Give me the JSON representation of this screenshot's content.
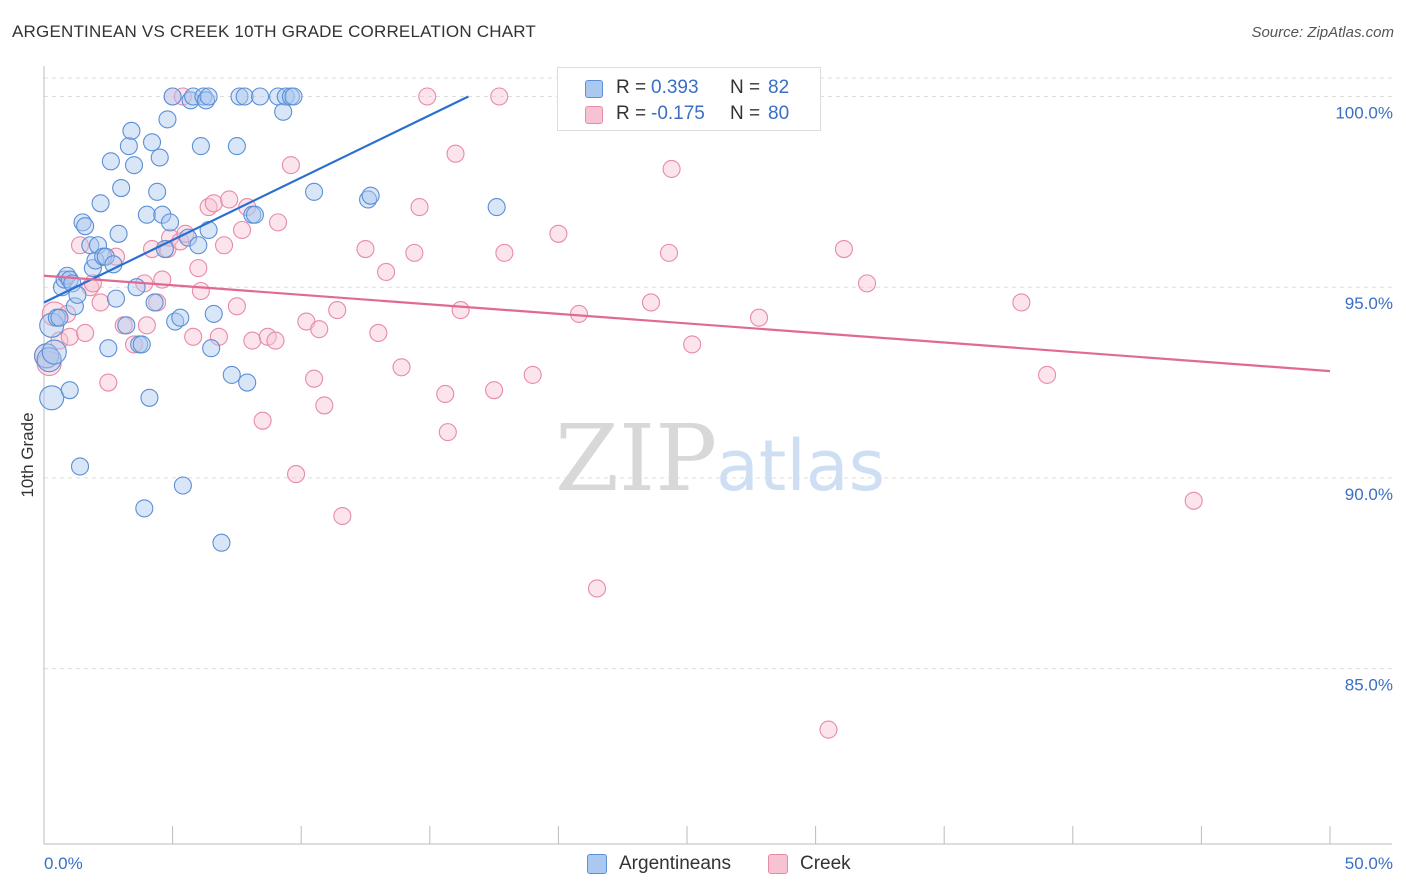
{
  "title": "ARGENTINEAN VS CREEK 10TH GRADE CORRELATION CHART",
  "source": "Source: ZipAtlas.com",
  "watermark": {
    "zip": "ZIP",
    "atlas": "atlas"
  },
  "legend": {
    "series": [
      {
        "r_label": "R =",
        "r_value": "0.393",
        "n_label": "N =",
        "n_value": "82"
      },
      {
        "r_label": "R =",
        "r_value": "-0.175",
        "n_label": "N =",
        "n_value": "80"
      }
    ],
    "bottom": [
      "Argentineans",
      "Creek"
    ]
  },
  "colors": {
    "blue_fill": "#aac8f0",
    "blue_stroke": "#5b8fd6",
    "blue_line": "#2a6fd0",
    "pink_fill": "#f7c3d3",
    "pink_stroke": "#e88aa8",
    "pink_line": "#e06a95",
    "tick_label": "#3a6fc4",
    "grid": "#dddddd"
  },
  "chart_data": {
    "type": "scatter",
    "title": "ARGENTINEAN VS CREEK 10TH GRADE CORRELATION CHART",
    "xlabel": "",
    "ylabel": "10th Grade",
    "xlim": [
      0,
      50
    ],
    "ylim": [
      80.4,
      100.8
    ],
    "x_tick_labels": [
      "0.0%",
      "50.0%"
    ],
    "y_ticks": [
      85,
      90,
      95,
      100
    ],
    "y_tick_labels": [
      "85.0%",
      "90.0%",
      "95.0%",
      "100.0%"
    ],
    "grid": "horizontal dashed",
    "legend_position": "top-center and bottom",
    "series": [
      {
        "name": "Argentineans",
        "R": 0.393,
        "N": 82,
        "trend": {
          "x": [
            0.0,
            16.5
          ],
          "y": [
            94.6,
            100.0
          ]
        },
        "points": [
          [
            0.1,
            93.2
          ],
          [
            0.2,
            93.1
          ],
          [
            0.3,
            92.1
          ],
          [
            0.3,
            94.0
          ],
          [
            0.4,
            93.3
          ],
          [
            0.5,
            94.2
          ],
          [
            0.6,
            94.2
          ],
          [
            0.7,
            95.0
          ],
          [
            0.8,
            95.2
          ],
          [
            0.9,
            95.3
          ],
          [
            1.0,
            92.3
          ],
          [
            1.0,
            95.2
          ],
          [
            1.1,
            95.1
          ],
          [
            1.2,
            94.5
          ],
          [
            1.3,
            94.8
          ],
          [
            1.4,
            90.3
          ],
          [
            1.5,
            96.7
          ],
          [
            1.6,
            96.6
          ],
          [
            1.8,
            96.1
          ],
          [
            1.9,
            95.5
          ],
          [
            2.0,
            95.7
          ],
          [
            2.1,
            96.1
          ],
          [
            2.2,
            97.2
          ],
          [
            2.3,
            95.8
          ],
          [
            2.4,
            95.8
          ],
          [
            2.5,
            93.4
          ],
          [
            2.6,
            98.3
          ],
          [
            2.7,
            95.6
          ],
          [
            2.8,
            94.7
          ],
          [
            2.9,
            96.4
          ],
          [
            3.0,
            97.6
          ],
          [
            3.2,
            94.0
          ],
          [
            3.3,
            98.7
          ],
          [
            3.4,
            99.1
          ],
          [
            3.5,
            98.2
          ],
          [
            3.6,
            95.0
          ],
          [
            3.7,
            93.5
          ],
          [
            3.8,
            93.5
          ],
          [
            3.9,
            89.2
          ],
          [
            4.0,
            96.9
          ],
          [
            4.1,
            92.1
          ],
          [
            4.2,
            98.8
          ],
          [
            4.3,
            94.6
          ],
          [
            4.4,
            97.5
          ],
          [
            4.5,
            98.4
          ],
          [
            4.6,
            96.9
          ],
          [
            4.7,
            96.0
          ],
          [
            4.8,
            99.4
          ],
          [
            4.9,
            96.7
          ],
          [
            5.0,
            100.0
          ],
          [
            5.1,
            94.1
          ],
          [
            5.3,
            94.2
          ],
          [
            5.4,
            89.8
          ],
          [
            5.6,
            96.3
          ],
          [
            5.7,
            99.9
          ],
          [
            5.8,
            100.0
          ],
          [
            6.0,
            96.1
          ],
          [
            6.1,
            98.7
          ],
          [
            6.2,
            100.0
          ],
          [
            6.3,
            99.9
          ],
          [
            6.4,
            100.0
          ],
          [
            6.5,
            93.4
          ],
          [
            6.6,
            94.3
          ],
          [
            6.9,
            88.3
          ],
          [
            7.3,
            92.7
          ],
          [
            7.5,
            98.7
          ],
          [
            7.6,
            100.0
          ],
          [
            7.8,
            100.0
          ],
          [
            7.9,
            92.5
          ],
          [
            8.1,
            96.9
          ],
          [
            8.2,
            96.9
          ],
          [
            8.4,
            100.0
          ],
          [
            9.1,
            100.0
          ],
          [
            9.3,
            99.6
          ],
          [
            9.4,
            100.0
          ],
          [
            9.6,
            100.0
          ],
          [
            9.7,
            100.0
          ],
          [
            10.5,
            97.5
          ],
          [
            12.6,
            97.3
          ],
          [
            12.7,
            97.4
          ],
          [
            17.6,
            97.1
          ],
          [
            6.4,
            96.5
          ]
        ]
      },
      {
        "name": "Creek",
        "R": -0.175,
        "N": 80,
        "trend": {
          "x": [
            0.0,
            50.0
          ],
          "y": [
            95.3,
            92.8
          ]
        },
        "points": [
          [
            0.1,
            93.2
          ],
          [
            0.2,
            93.0
          ],
          [
            0.4,
            94.3
          ],
          [
            0.6,
            93.6
          ],
          [
            0.9,
            94.3
          ],
          [
            1.0,
            93.7
          ],
          [
            1.4,
            96.1
          ],
          [
            1.6,
            93.8
          ],
          [
            1.8,
            95.0
          ],
          [
            1.9,
            95.1
          ],
          [
            2.2,
            94.6
          ],
          [
            2.5,
            92.5
          ],
          [
            2.8,
            95.8
          ],
          [
            3.1,
            94.0
          ],
          [
            3.5,
            93.5
          ],
          [
            3.9,
            95.1
          ],
          [
            4.0,
            94.0
          ],
          [
            4.2,
            96.0
          ],
          [
            4.4,
            94.6
          ],
          [
            4.6,
            95.2
          ],
          [
            4.8,
            96.0
          ],
          [
            4.9,
            96.3
          ],
          [
            5.0,
            100.0
          ],
          [
            5.3,
            96.2
          ],
          [
            5.4,
            100.0
          ],
          [
            5.5,
            96.4
          ],
          [
            5.8,
            93.7
          ],
          [
            6.0,
            95.5
          ],
          [
            6.1,
            94.9
          ],
          [
            6.4,
            97.1
          ],
          [
            6.6,
            97.2
          ],
          [
            6.8,
            93.7
          ],
          [
            7.0,
            96.1
          ],
          [
            7.2,
            97.3
          ],
          [
            7.5,
            94.5
          ],
          [
            7.7,
            96.5
          ],
          [
            7.9,
            97.1
          ],
          [
            8.1,
            93.6
          ],
          [
            8.5,
            91.5
          ],
          [
            8.7,
            93.7
          ],
          [
            9.0,
            93.6
          ],
          [
            9.1,
            96.7
          ],
          [
            9.6,
            98.2
          ],
          [
            9.8,
            90.1
          ],
          [
            10.2,
            94.1
          ],
          [
            10.5,
            92.6
          ],
          [
            10.7,
            93.9
          ],
          [
            10.9,
            91.9
          ],
          [
            11.4,
            94.4
          ],
          [
            11.6,
            89.0
          ],
          [
            12.5,
            96.0
          ],
          [
            13.0,
            93.8
          ],
          [
            13.3,
            95.4
          ],
          [
            13.9,
            92.9
          ],
          [
            14.4,
            95.9
          ],
          [
            14.6,
            97.1
          ],
          [
            14.9,
            100.0
          ],
          [
            15.6,
            92.2
          ],
          [
            15.7,
            91.2
          ],
          [
            16.0,
            98.5
          ],
          [
            16.2,
            94.4
          ],
          [
            17.5,
            92.3
          ],
          [
            17.7,
            100.0
          ],
          [
            17.9,
            95.9
          ],
          [
            19.0,
            92.7
          ],
          [
            20.0,
            96.4
          ],
          [
            20.8,
            94.3
          ],
          [
            21.5,
            87.1
          ],
          [
            23.2,
            100.0
          ],
          [
            23.6,
            94.6
          ],
          [
            24.3,
            95.9
          ],
          [
            24.4,
            98.1
          ],
          [
            25.2,
            93.5
          ],
          [
            27.8,
            94.2
          ],
          [
            30.5,
            83.4
          ],
          [
            31.1,
            96.0
          ],
          [
            32.0,
            95.1
          ],
          [
            38.0,
            94.6
          ],
          [
            39.0,
            92.7
          ],
          [
            44.7,
            89.4
          ]
        ]
      }
    ]
  }
}
